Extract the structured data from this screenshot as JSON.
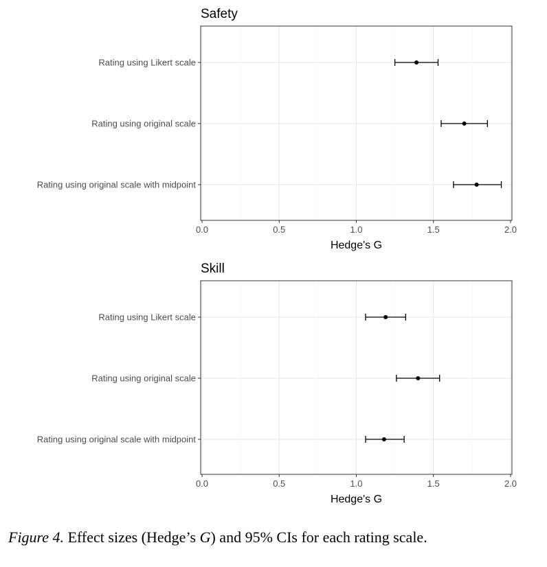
{
  "chart_data": [
    {
      "type": "forest",
      "title": "Safety",
      "xlabel": "Hedge's G",
      "xlim": [
        0,
        2
      ],
      "x_ticks": [
        "0.0",
        "0.5",
        "1.0",
        "1.5",
        "2.0"
      ],
      "grid": true,
      "categories": [
        "Rating using Likert scale",
        "Rating using original scale",
        "Rating using original scale with midpoint"
      ],
      "estimates": [
        1.39,
        1.7,
        1.78
      ],
      "ci_low": [
        1.25,
        1.55,
        1.63
      ],
      "ci_high": [
        1.53,
        1.85,
        1.94
      ]
    },
    {
      "type": "forest",
      "title": "Skill",
      "xlabel": "Hedge's G",
      "xlim": [
        0,
        2
      ],
      "x_ticks": [
        "0.0",
        "0.5",
        "1.0",
        "1.5",
        "2.0"
      ],
      "grid": true,
      "categories": [
        "Rating using Likert scale",
        "Rating using original scale",
        "Rating using original scale with midpoint"
      ],
      "estimates": [
        1.19,
        1.4,
        1.18
      ],
      "ci_low": [
        1.06,
        1.26,
        1.06
      ],
      "ci_high": [
        1.32,
        1.54,
        1.31
      ]
    }
  ],
  "caption": {
    "figure_label": "Figure 4.",
    "text_before": " Effect sizes (Hedge’s ",
    "text_italic": "G",
    "text_after": ") and 95% CIs for each rating scale."
  }
}
